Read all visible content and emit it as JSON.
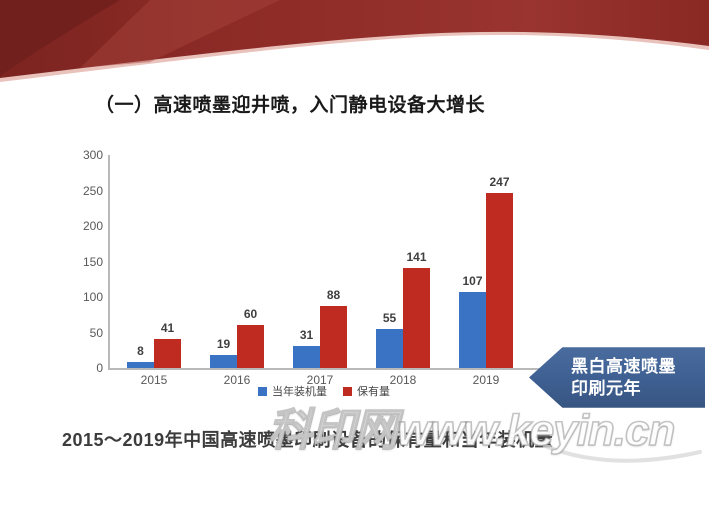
{
  "slide": {
    "title": "（一）高速喷墨迎井喷，入门静电设备大增长",
    "caption": "2015～2019年中国高速喷墨印刷设备的保有量和当年装机量",
    "callout": {
      "line1": "黑白高速喷墨",
      "line2": "印刷元年"
    },
    "watermark": "科印网www.keyin.cn"
  },
  "colors": {
    "ribbon_red": "#8e2b27",
    "ribbon_dark": "#6e1f1c",
    "bar_blue": "#3a72c4",
    "bar_red": "#bf2a21",
    "callout_blue": "#3e5f91",
    "axis_gray": "#b9b9b9",
    "tick_text": "#595959"
  },
  "chart_data": {
    "type": "bar",
    "categories": [
      "2015",
      "2016",
      "2017",
      "2018",
      "2019"
    ],
    "series": [
      {
        "name": "当年装机量",
        "color": "#3a72c4",
        "values": [
          8,
          19,
          31,
          55,
          107
        ]
      },
      {
        "name": "保有量",
        "color": "#bf2a21",
        "values": [
          41,
          60,
          88,
          141,
          247
        ]
      }
    ],
    "title": "",
    "xlabel": "",
    "ylabel": "",
    "ylim": [
      0,
      300
    ],
    "yticks": [
      0,
      50,
      100,
      150,
      200,
      250,
      300
    ],
    "grid": false,
    "legend_position": "bottom"
  }
}
